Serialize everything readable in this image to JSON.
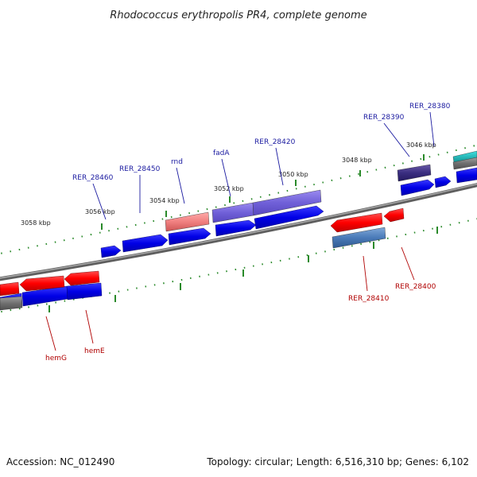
{
  "title": "Rhodococcus erythropolis PR4, complete genome",
  "footer": {
    "accession": "Accession: NC_012490",
    "summary": "Topology: circular; Length: 6,516,310 bp; Genes: 6,102"
  },
  "colors": {
    "backbone": "#7a7a7a",
    "forward_gene": "#1010e0",
    "reverse_gene": "#ff0000",
    "tick": "#2a8a2a",
    "label_forward": "#1a1aa0",
    "label_reverse": "#b00000"
  },
  "scale_labels": [
    "3058 kbp",
    "3056 kbp",
    "3054 kbp",
    "3052 kbp",
    "3050 kbp",
    "3048 kbp",
    "3046 kbp"
  ],
  "forward_labels": [
    "RER_28460",
    "RER_28450",
    "rnd",
    "fadA",
    "RER_28420",
    "RER_28390",
    "RER_28380"
  ],
  "reverse_labels": [
    "hemG",
    "hemE",
    "RER_28410",
    "RER_28400"
  ]
}
